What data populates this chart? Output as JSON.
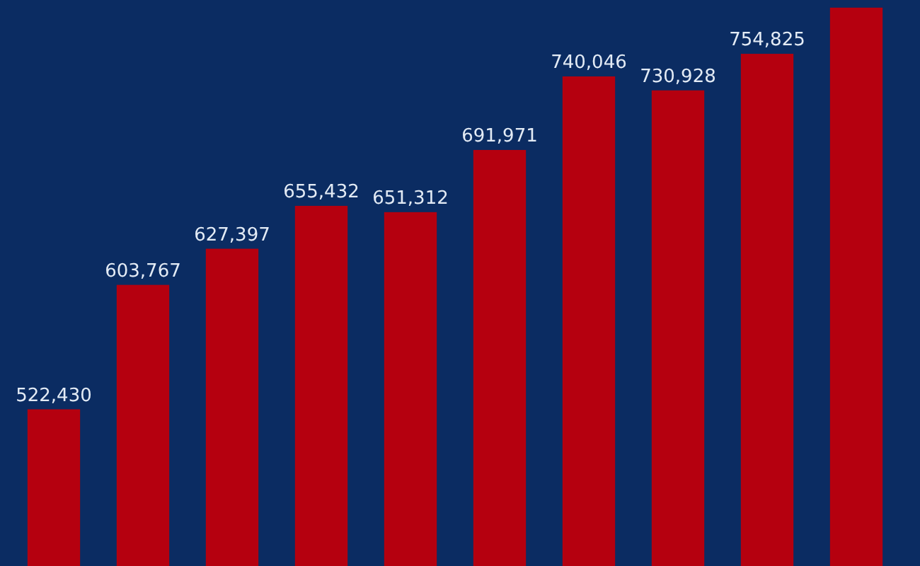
{
  "chart_data": {
    "type": "bar",
    "categories": [
      null,
      null,
      null,
      null,
      null,
      null,
      null,
      null,
      null,
      null
    ],
    "values": [
      522430,
      603767,
      627397,
      655432,
      651312,
      691971,
      740046,
      730928,
      754825,
      785000
    ],
    "value_labels": [
      "522,430",
      "603,767",
      "627,397",
      "655,432",
      "651,312",
      "691,971",
      "740,046",
      "730,928",
      "754,825",
      null
    ],
    "color": "#b5000f",
    "ylim": [
      420000,
      790000
    ]
  }
}
